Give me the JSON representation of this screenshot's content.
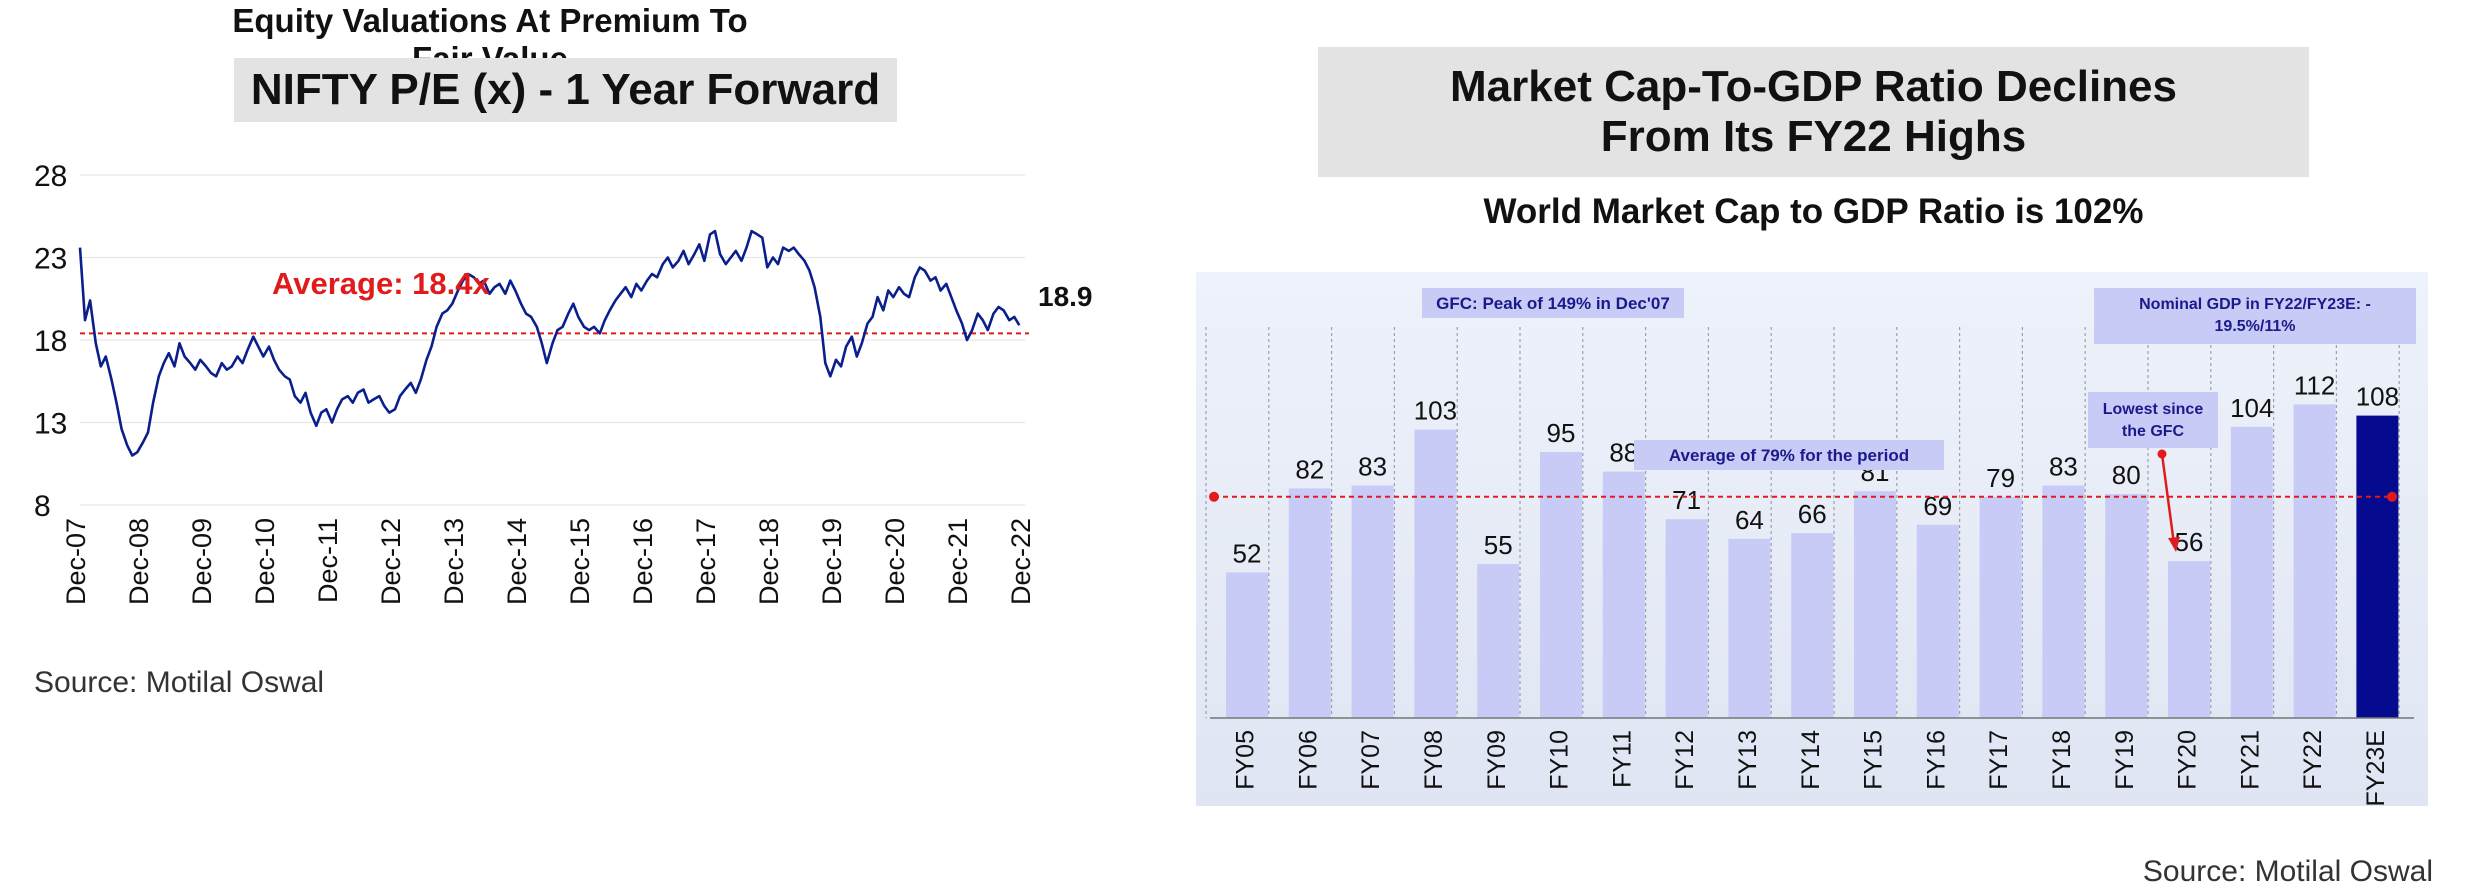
{
  "left_panel": {
    "title": "Equity Valuations At Premium To Fair Value",
    "box_title": "NIFTY P/E (x) - 1 Year Forward",
    "source": "Source: Motilal Oswal"
  },
  "right_panel": {
    "box_title_line1": "Market Cap-To-GDP Ratio Declines",
    "box_title_line2": "From Its FY22 Highs",
    "subtitle": "World Market Cap to GDP Ratio is 102%",
    "source": "Source: Motilal Oswal"
  },
  "chart_data": [
    {
      "type": "line",
      "title": "NIFTY P/E (x) - 1 Year Forward",
      "x_tick_labels": [
        "Dec-07",
        "Dec-08",
        "Dec-09",
        "Dec-10",
        "Dec-11",
        "Dec-12",
        "Dec-13",
        "Dec-14",
        "Dec-15",
        "Dec-16",
        "Dec-17",
        "Dec-18",
        "Dec-19",
        "Dec-20",
        "Dec-21",
        "Dec-22"
      ],
      "y_ticks": [
        28,
        23,
        18,
        13,
        8
      ],
      "ylim": [
        8,
        28
      ],
      "average_label": "Average: 18.4x",
      "average_value": 18.4,
      "end_label": "18.9",
      "colors": {
        "line": "#0b1f8c",
        "average": "#e01b1b"
      },
      "series": [
        {
          "values": [
            [
              2007.92,
              23.6
            ],
            [
              2008.0,
              19.2
            ],
            [
              2008.08,
              20.4
            ],
            [
              2008.17,
              17.8
            ],
            [
              2008.25,
              16.4
            ],
            [
              2008.33,
              17.0
            ],
            [
              2008.42,
              15.6
            ],
            [
              2008.5,
              14.2
            ],
            [
              2008.58,
              12.6
            ],
            [
              2008.67,
              11.6
            ],
            [
              2008.75,
              11.0
            ],
            [
              2008.83,
              11.2
            ],
            [
              2008.92,
              11.8
            ],
            [
              2009.0,
              12.4
            ],
            [
              2009.08,
              14.2
            ],
            [
              2009.17,
              15.8
            ],
            [
              2009.25,
              16.6
            ],
            [
              2009.33,
              17.2
            ],
            [
              2009.42,
              16.4
            ],
            [
              2009.5,
              17.8
            ],
            [
              2009.58,
              17.0
            ],
            [
              2009.67,
              16.6
            ],
            [
              2009.75,
              16.2
            ],
            [
              2009.83,
              16.8
            ],
            [
              2009.92,
              16.4
            ],
            [
              2010.0,
              16.0
            ],
            [
              2010.08,
              15.8
            ],
            [
              2010.17,
              16.6
            ],
            [
              2010.25,
              16.2
            ],
            [
              2010.33,
              16.4
            ],
            [
              2010.42,
              17.0
            ],
            [
              2010.5,
              16.6
            ],
            [
              2010.58,
              17.4
            ],
            [
              2010.67,
              18.2
            ],
            [
              2010.75,
              17.6
            ],
            [
              2010.83,
              17.0
            ],
            [
              2010.92,
              17.6
            ],
            [
              2011.0,
              16.8
            ],
            [
              2011.08,
              16.2
            ],
            [
              2011.17,
              15.8
            ],
            [
              2011.25,
              15.6
            ],
            [
              2011.33,
              14.6
            ],
            [
              2011.42,
              14.2
            ],
            [
              2011.5,
              14.8
            ],
            [
              2011.58,
              13.6
            ],
            [
              2011.67,
              12.8
            ],
            [
              2011.75,
              13.6
            ],
            [
              2011.83,
              13.8
            ],
            [
              2011.92,
              13.0
            ],
            [
              2012.0,
              13.8
            ],
            [
              2012.08,
              14.4
            ],
            [
              2012.17,
              14.6
            ],
            [
              2012.25,
              14.2
            ],
            [
              2012.33,
              14.8
            ],
            [
              2012.42,
              15.0
            ],
            [
              2012.5,
              14.2
            ],
            [
              2012.58,
              14.4
            ],
            [
              2012.67,
              14.6
            ],
            [
              2012.75,
              14.0
            ],
            [
              2012.83,
              13.6
            ],
            [
              2012.92,
              13.8
            ],
            [
              2013.0,
              14.6
            ],
            [
              2013.08,
              15.0
            ],
            [
              2013.17,
              15.4
            ],
            [
              2013.25,
              14.8
            ],
            [
              2013.33,
              15.6
            ],
            [
              2013.42,
              16.8
            ],
            [
              2013.5,
              17.6
            ],
            [
              2013.58,
              18.8
            ],
            [
              2013.67,
              19.6
            ],
            [
              2013.75,
              19.8
            ],
            [
              2013.83,
              20.2
            ],
            [
              2013.92,
              21.0
            ],
            [
              2014.0,
              21.6
            ],
            [
              2014.08,
              22.0
            ],
            [
              2014.17,
              21.8
            ],
            [
              2014.25,
              21.4
            ],
            [
              2014.33,
              21.6
            ],
            [
              2014.42,
              20.8
            ],
            [
              2014.5,
              21.2
            ],
            [
              2014.58,
              21.4
            ],
            [
              2014.67,
              20.8
            ],
            [
              2014.75,
              21.6
            ],
            [
              2014.83,
              21.0
            ],
            [
              2014.92,
              20.2
            ],
            [
              2015.0,
              19.6
            ],
            [
              2015.08,
              19.4
            ],
            [
              2015.17,
              18.8
            ],
            [
              2015.25,
              17.8
            ],
            [
              2015.33,
              16.6
            ],
            [
              2015.42,
              17.8
            ],
            [
              2015.5,
              18.6
            ],
            [
              2015.58,
              18.8
            ],
            [
              2015.67,
              19.6
            ],
            [
              2015.75,
              20.2
            ],
            [
              2015.83,
              19.4
            ],
            [
              2015.92,
              18.8
            ],
            [
              2016.0,
              18.6
            ],
            [
              2016.08,
              18.8
            ],
            [
              2016.17,
              18.4
            ],
            [
              2016.25,
              19.2
            ],
            [
              2016.33,
              19.8
            ],
            [
              2016.42,
              20.4
            ],
            [
              2016.5,
              20.8
            ],
            [
              2016.58,
              21.2
            ],
            [
              2016.67,
              20.6
            ],
            [
              2016.75,
              21.4
            ],
            [
              2016.83,
              21.0
            ],
            [
              2016.92,
              21.6
            ],
            [
              2017.0,
              22.0
            ],
            [
              2017.08,
              21.8
            ],
            [
              2017.17,
              22.6
            ],
            [
              2017.25,
              23.0
            ],
            [
              2017.33,
              22.4
            ],
            [
              2017.42,
              22.8
            ],
            [
              2017.5,
              23.4
            ],
            [
              2017.58,
              22.6
            ],
            [
              2017.67,
              23.2
            ],
            [
              2017.75,
              23.8
            ],
            [
              2017.83,
              22.8
            ],
            [
              2017.92,
              24.4
            ],
            [
              2018.0,
              24.6
            ],
            [
              2018.08,
              23.2
            ],
            [
              2018.17,
              22.6
            ],
            [
              2018.25,
              23.0
            ],
            [
              2018.33,
              23.4
            ],
            [
              2018.42,
              22.8
            ],
            [
              2018.5,
              23.6
            ],
            [
              2018.58,
              24.6
            ],
            [
              2018.67,
              24.4
            ],
            [
              2018.75,
              24.2
            ],
            [
              2018.83,
              22.4
            ],
            [
              2018.92,
              23.0
            ],
            [
              2019.0,
              22.6
            ],
            [
              2019.08,
              23.6
            ],
            [
              2019.17,
              23.4
            ],
            [
              2019.25,
              23.6
            ],
            [
              2019.33,
              23.2
            ],
            [
              2019.42,
              22.8
            ],
            [
              2019.5,
              22.2
            ],
            [
              2019.58,
              21.2
            ],
            [
              2019.67,
              19.4
            ],
            [
              2019.75,
              16.6
            ],
            [
              2019.83,
              15.8
            ],
            [
              2019.92,
              16.8
            ],
            [
              2020.0,
              16.4
            ],
            [
              2020.08,
              17.6
            ],
            [
              2020.17,
              18.2
            ],
            [
              2020.25,
              17.0
            ],
            [
              2020.33,
              17.8
            ],
            [
              2020.42,
              19.0
            ],
            [
              2020.5,
              19.4
            ],
            [
              2020.58,
              20.6
            ],
            [
              2020.67,
              19.8
            ],
            [
              2020.75,
              21.0
            ],
            [
              2020.83,
              20.6
            ],
            [
              2020.92,
              21.2
            ],
            [
              2021.0,
              20.8
            ],
            [
              2021.08,
              20.6
            ],
            [
              2021.17,
              21.8
            ],
            [
              2021.25,
              22.4
            ],
            [
              2021.33,
              22.2
            ],
            [
              2021.42,
              21.6
            ],
            [
              2021.5,
              21.8
            ],
            [
              2021.58,
              21.0
            ],
            [
              2021.67,
              21.4
            ],
            [
              2021.75,
              20.6
            ],
            [
              2021.83,
              19.8
            ],
            [
              2021.92,
              19.0
            ],
            [
              2022.0,
              18.0
            ],
            [
              2022.08,
              18.6
            ],
            [
              2022.17,
              19.6
            ],
            [
              2022.25,
              19.2
            ],
            [
              2022.33,
              18.6
            ],
            [
              2022.42,
              19.6
            ],
            [
              2022.5,
              20.0
            ],
            [
              2022.58,
              19.8
            ],
            [
              2022.67,
              19.2
            ],
            [
              2022.75,
              19.4
            ],
            [
              2022.83,
              18.9
            ]
          ]
        }
      ]
    },
    {
      "type": "bar",
      "categories": [
        "FY05",
        "FY06",
        "FY07",
        "FY08",
        "FY09",
        "FY10",
        "FY11",
        "FY12",
        "FY13",
        "FY14",
        "FY15",
        "FY16",
        "FY17",
        "FY18",
        "FY19",
        "FY20",
        "FY21",
        "FY22",
        "FY23E"
      ],
      "values": [
        52,
        82,
        83,
        103,
        55,
        95,
        88,
        71,
        64,
        66,
        81,
        69,
        79,
        83,
        80,
        56,
        104,
        112,
        108
      ],
      "ylim": [
        0,
        150
      ],
      "average_value": 79,
      "highlight_category": "FY23E",
      "annotations": {
        "gfc": "GFC: Peak of 149% in Dec'07",
        "average": "Average of 79% for the period",
        "lowest_line1": "Lowest since",
        "lowest_line2": "the GFC",
        "nominal_line1": "Nominal GDP in FY22/FY23E: -",
        "nominal_line2": "19.5%/11%"
      },
      "colors": {
        "bar": "#c9cbf7",
        "highlight": "#050a8f",
        "average": "#e01b1b",
        "annotation_box": "#c9cbf7",
        "annotation_text": "#1a1a8a",
        "panel_bg": "#e6ebf6"
      }
    }
  ]
}
